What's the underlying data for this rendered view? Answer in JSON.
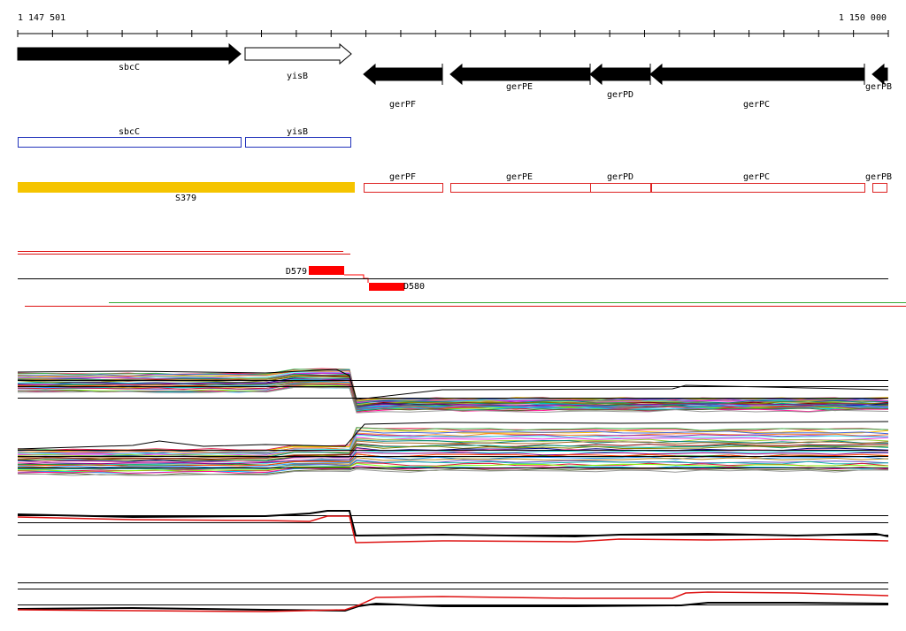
{
  "coord_start": "1 147 501",
  "coord_end": "1 150 000",
  "colors": {
    "gene_fill": "#000000",
    "gene_outline_fill": "#ffffff",
    "cds_box": "#2233bb",
    "segment_box": "#dd2222",
    "region_bar": "#f5c400",
    "deletion": "#ff0000",
    "baseline": "#000000",
    "green_line": "#33aa33",
    "red_line": "#dd1111"
  },
  "genes_track": [
    {
      "label": "sbcC",
      "strand": "forward",
      "style": "filled"
    },
    {
      "label": "yisB",
      "strand": "forward",
      "style": "outline"
    },
    {
      "label": "gerPF",
      "strand": "reverse",
      "style": "filled"
    },
    {
      "label": "gerPE",
      "strand": "reverse",
      "style": "filled"
    },
    {
      "label": "gerPD",
      "strand": "reverse",
      "style": "filled"
    },
    {
      "label": "gerPC",
      "strand": "reverse",
      "style": "filled"
    },
    {
      "label": "gerPB",
      "strand": "reverse",
      "style": "filled"
    }
  ],
  "cds_track": [
    {
      "label": "sbcC"
    },
    {
      "label": "yisB"
    }
  ],
  "segments_track": [
    {
      "label": "gerPF"
    },
    {
      "label": "gerPE"
    },
    {
      "label": "gerPD"
    },
    {
      "label": "gerPC"
    },
    {
      "label": "gerPB"
    }
  ],
  "region": {
    "label": "S379"
  },
  "deletions": [
    {
      "label": "D579"
    },
    {
      "label": "D580"
    }
  ],
  "profiles": {
    "group1_series_count": 30,
    "group2_series_count": 30
  }
}
